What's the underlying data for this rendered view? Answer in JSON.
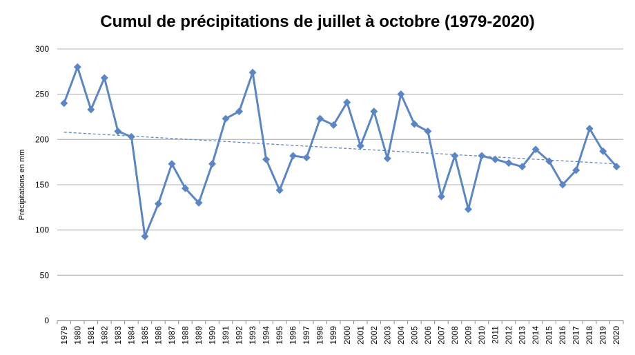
{
  "chart_data": {
    "type": "line",
    "title": "Cumul de précipitations de juillet à octobre (1979-2020)",
    "xlabel": "",
    "ylabel": "Précipitations en mm",
    "ylim": [
      0,
      300
    ],
    "yticks": [
      0,
      50,
      100,
      150,
      200,
      250,
      300
    ],
    "grid": "horizontal",
    "legend": "none",
    "categories": [
      "1979",
      "1980",
      "1981",
      "1982",
      "1983",
      "1984",
      "1985",
      "1986",
      "1987",
      "1988",
      "1989",
      "1990",
      "1991",
      "1992",
      "1993",
      "1994",
      "1995",
      "1996",
      "1997",
      "1998",
      "1999",
      "2000",
      "2001",
      "2002",
      "2003",
      "2004",
      "2005",
      "2006",
      "2007",
      "2008",
      "2009",
      "2010",
      "2011",
      "2012",
      "2013",
      "2014",
      "2015",
      "2016",
      "2017",
      "2018",
      "2019",
      "2020"
    ],
    "series": [
      {
        "values": [
          240,
          280,
          233,
          268,
          209,
          203,
          93,
          129,
          173,
          146,
          130,
          173,
          223,
          231,
          274,
          178,
          144,
          182,
          180,
          223,
          216,
          241,
          193,
          231,
          179,
          250,
          217,
          209,
          137,
          182,
          123,
          182,
          178,
          174,
          170,
          189,
          176,
          150,
          166,
          212,
          187,
          170
        ],
        "color": "#5b86c5",
        "marker": "diamond"
      }
    ],
    "trendline": {
      "start": 208,
      "end": 173,
      "color": "#5b86c5",
      "style": "dashed"
    },
    "colors": {
      "grid": "#c0c0c0",
      "axis": "#8c8c8c",
      "line": "#5b86c5"
    }
  }
}
